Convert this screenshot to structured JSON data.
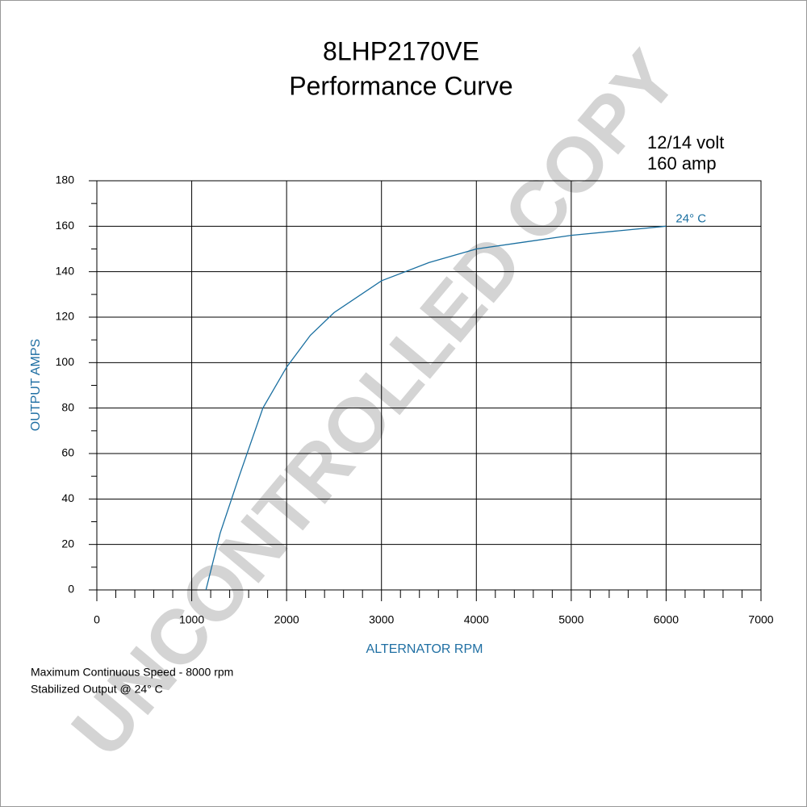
{
  "chart_data": {
    "type": "line",
    "title": "8LHP2170VE",
    "subtitle": "Performance Curve",
    "annotations": [
      "12/14 volt",
      "160 amp"
    ],
    "notes": [
      "Maximum Continuous Speed - 8000 rpm",
      "Stabilized Output @ 24° C"
    ],
    "watermark": "UNCONTROLLED COPY",
    "x_label": "ALTERNATOR RPM",
    "y_label": "OUTPUT AMPS",
    "x": [
      1150,
      1300,
      1500,
      1750,
      2000,
      2250,
      2500,
      3000,
      3500,
      4000,
      4500,
      5000,
      5500,
      6000
    ],
    "series": [
      {
        "name": "24° C",
        "color": "#1a6fa0",
        "values": [
          0,
          25,
          50,
          80,
          98,
          112,
          122,
          136,
          144,
          150,
          153,
          156,
          158,
          160
        ]
      }
    ],
    "xlim": [
      0,
      7000
    ],
    "xticks": [
      0,
      1000,
      2000,
      3000,
      4000,
      5000,
      6000,
      7000
    ],
    "xminorticks": [
      200,
      400,
      600,
      800,
      1200,
      1400,
      1600,
      1800,
      2200,
      2400,
      2600,
      2800,
      3200,
      3400,
      3600,
      3800,
      4200,
      4400,
      4600,
      4800,
      5200,
      5400,
      5600,
      5800,
      6200,
      6400,
      6600,
      6800
    ],
    "ylim": [
      0,
      180
    ],
    "yticks": [
      0,
      20,
      40,
      60,
      80,
      100,
      120,
      140,
      160,
      180
    ],
    "yminorticks": [
      10,
      30,
      50,
      70,
      90,
      110,
      130,
      150,
      170
    ],
    "grid": true
  }
}
